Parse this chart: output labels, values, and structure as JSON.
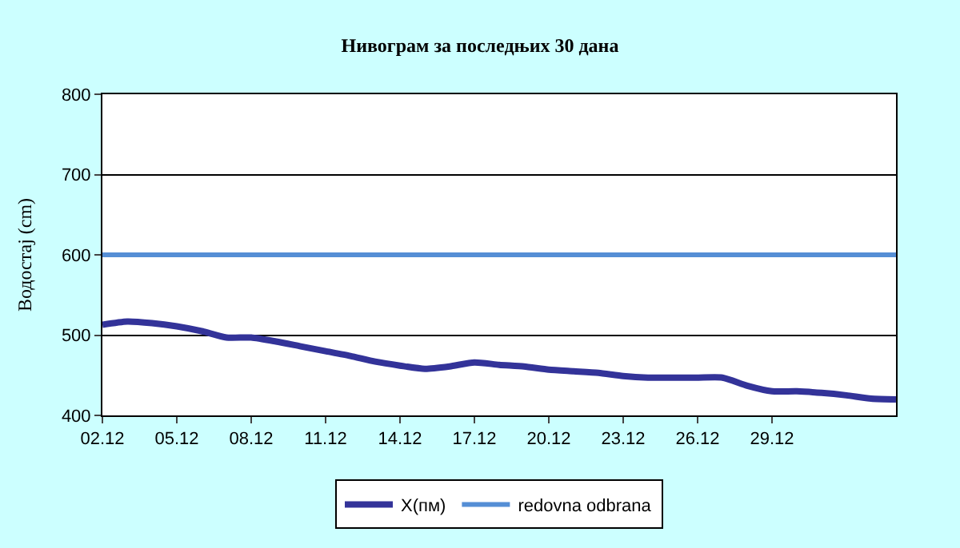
{
  "chart_data": {
    "type": "line",
    "title": "Нивограм за последњих 30 дана",
    "ylabel": "Водостај (cm)",
    "categories": [
      "02.12",
      null,
      null,
      "05.12",
      null,
      null,
      "08.12",
      null,
      null,
      "11.12",
      null,
      null,
      "14.12",
      null,
      null,
      "17.12",
      null,
      null,
      "20.12",
      null,
      null,
      "23.12",
      null,
      null,
      "26.12",
      null,
      null,
      "29.12",
      null,
      null,
      null,
      null,
      null
    ],
    "series": [
      {
        "name": "X(пм)",
        "color": "#333399",
        "values": [
          513,
          517,
          515,
          511,
          505,
          497,
          497,
          492,
          486,
          480,
          474,
          467,
          462,
          458,
          461,
          466,
          463,
          461,
          457,
          455,
          453,
          449,
          447,
          447,
          447,
          447,
          437,
          430,
          430,
          428,
          425,
          421,
          420
        ]
      },
      {
        "name": "redovna odbrana",
        "color": "#558ed5",
        "values": [
          600,
          600,
          600,
          600,
          600,
          600,
          600,
          600,
          600,
          600,
          600,
          600,
          600,
          600,
          600,
          600,
          600,
          600,
          600,
          600,
          600,
          600,
          600,
          600,
          600,
          600,
          600,
          600,
          600,
          600,
          600,
          600,
          600
        ]
      }
    ],
    "ylim": [
      400,
      800
    ],
    "yticks": [
      400,
      500,
      600,
      700,
      800
    ],
    "grid": "y",
    "legend": "bottom",
    "marker": "none",
    "line_style": "solid"
  }
}
